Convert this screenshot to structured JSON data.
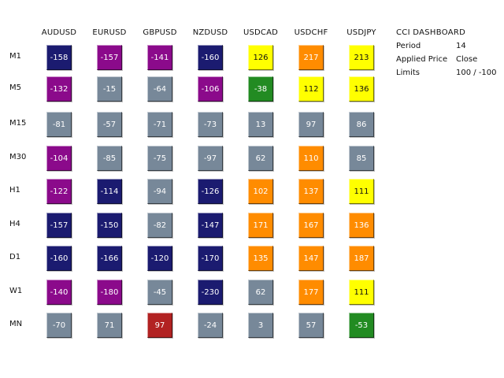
{
  "panel": {
    "title": "CCI DASHBOARD",
    "settings": [
      {
        "label": "Period",
        "value": "14"
      },
      {
        "label": "Applied Price",
        "value": "Close"
      },
      {
        "label": "Limits",
        "value": "100 / -100"
      }
    ]
  },
  "pairs": [
    "AUDUSD",
    "EURUSD",
    "GBPUSD",
    "NZDUSD",
    "USDCAD",
    "USDCHF",
    "USDJPY"
  ],
  "timeframes": [
    "M1",
    "M5",
    "M15",
    "M30",
    "H1",
    "H4",
    "D1",
    "W1",
    "MN"
  ],
  "colors": {
    "navy": "#1b1b70",
    "purple": "#8b0a8b",
    "gray": "#778899",
    "yellow": "#ffff00",
    "orange": "#ff8c00",
    "green": "#228b22",
    "red": "#b22222"
  },
  "grid": [
    [
      {
        "v": "-158",
        "c": "navy"
      },
      {
        "v": "-157",
        "c": "purple"
      },
      {
        "v": "-141",
        "c": "purple"
      },
      {
        "v": "-160",
        "c": "navy"
      },
      {
        "v": "126",
        "c": "yellow"
      },
      {
        "v": "217",
        "c": "orange"
      },
      {
        "v": "213",
        "c": "yellow"
      }
    ],
    [
      {
        "v": "-132",
        "c": "purple"
      },
      {
        "v": "-15",
        "c": "gray"
      },
      {
        "v": "-64",
        "c": "gray"
      },
      {
        "v": "-106",
        "c": "purple"
      },
      {
        "v": "-38",
        "c": "green"
      },
      {
        "v": "112",
        "c": "yellow"
      },
      {
        "v": "136",
        "c": "yellow"
      }
    ],
    [
      {
        "v": "-81",
        "c": "gray"
      },
      {
        "v": "-57",
        "c": "gray"
      },
      {
        "v": "-71",
        "c": "gray"
      },
      {
        "v": "-73",
        "c": "gray"
      },
      {
        "v": "13",
        "c": "gray"
      },
      {
        "v": "97",
        "c": "gray"
      },
      {
        "v": "86",
        "c": "gray"
      }
    ],
    [
      {
        "v": "-104",
        "c": "purple"
      },
      {
        "v": "-85",
        "c": "gray"
      },
      {
        "v": "-75",
        "c": "gray"
      },
      {
        "v": "-97",
        "c": "gray"
      },
      {
        "v": "62",
        "c": "gray"
      },
      {
        "v": "110",
        "c": "orange"
      },
      {
        "v": "85",
        "c": "gray"
      }
    ],
    [
      {
        "v": "-122",
        "c": "purple"
      },
      {
        "v": "-114",
        "c": "navy"
      },
      {
        "v": "-94",
        "c": "gray"
      },
      {
        "v": "-126",
        "c": "navy"
      },
      {
        "v": "102",
        "c": "orange"
      },
      {
        "v": "137",
        "c": "orange"
      },
      {
        "v": "111",
        "c": "yellow"
      }
    ],
    [
      {
        "v": "-157",
        "c": "navy"
      },
      {
        "v": "-150",
        "c": "navy"
      },
      {
        "v": "-82",
        "c": "gray"
      },
      {
        "v": "-147",
        "c": "navy"
      },
      {
        "v": "171",
        "c": "orange"
      },
      {
        "v": "167",
        "c": "orange"
      },
      {
        "v": "136",
        "c": "orange"
      }
    ],
    [
      {
        "v": "-160",
        "c": "navy"
      },
      {
        "v": "-166",
        "c": "navy"
      },
      {
        "v": "-120",
        "c": "navy"
      },
      {
        "v": "-170",
        "c": "navy"
      },
      {
        "v": "135",
        "c": "orange"
      },
      {
        "v": "147",
        "c": "orange"
      },
      {
        "v": "187",
        "c": "orange"
      }
    ],
    [
      {
        "v": "-140",
        "c": "purple"
      },
      {
        "v": "-180",
        "c": "purple"
      },
      {
        "v": "-45",
        "c": "gray"
      },
      {
        "v": "-230",
        "c": "navy"
      },
      {
        "v": "62",
        "c": "gray"
      },
      {
        "v": "177",
        "c": "orange"
      },
      {
        "v": "111",
        "c": "yellow"
      }
    ],
    [
      {
        "v": "-70",
        "c": "gray"
      },
      {
        "v": "71",
        "c": "gray"
      },
      {
        "v": "97",
        "c": "red"
      },
      {
        "v": "-24",
        "c": "gray"
      },
      {
        "v": "3",
        "c": "gray"
      },
      {
        "v": "57",
        "c": "gray"
      },
      {
        "v": "-53",
        "c": "green"
      }
    ]
  ]
}
